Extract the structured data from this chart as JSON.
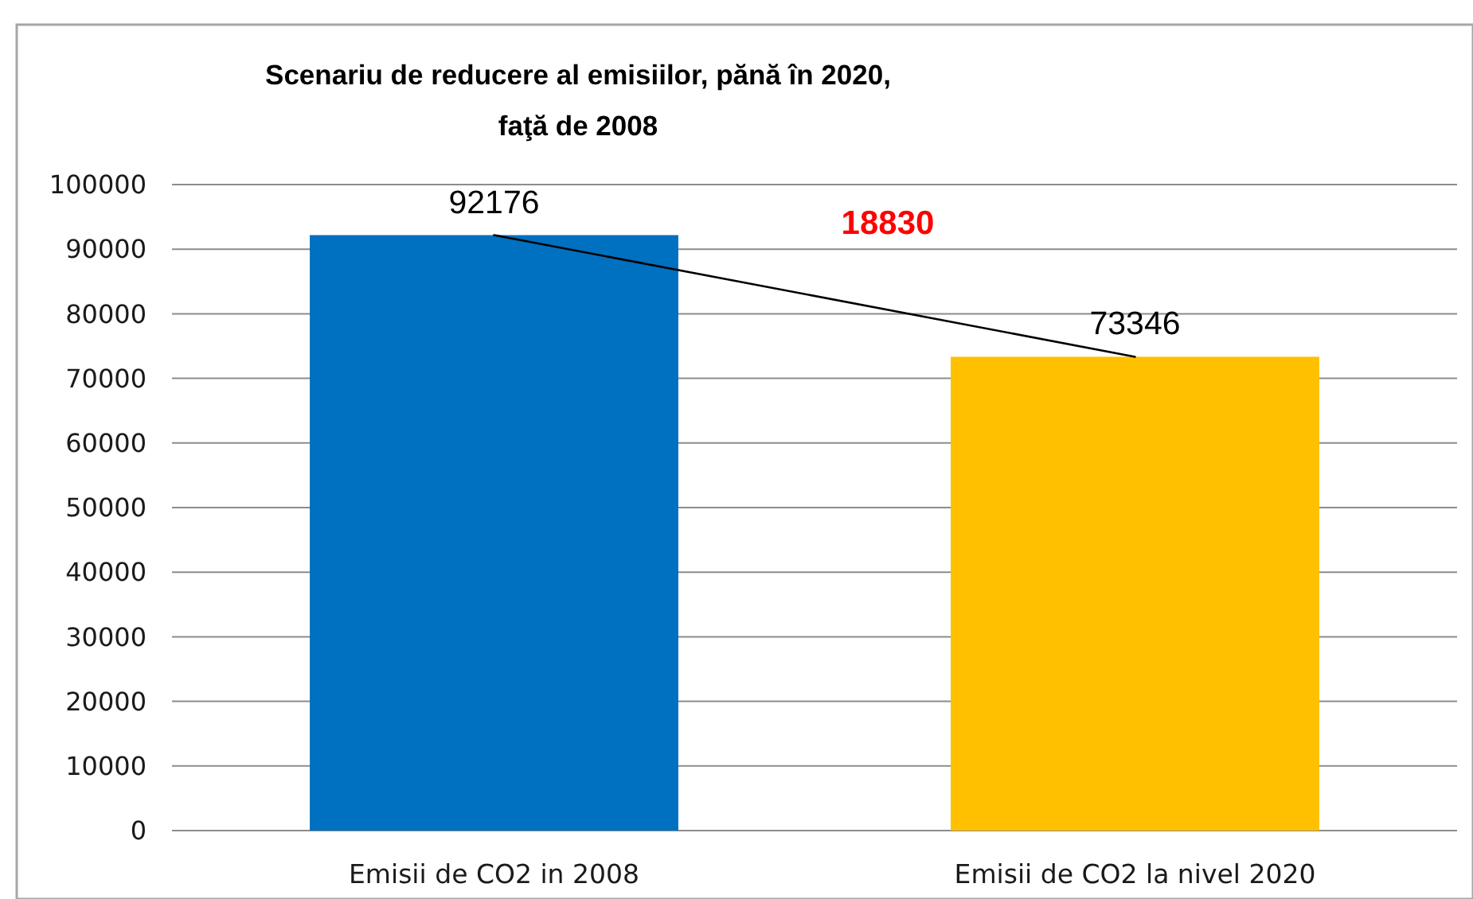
{
  "chart_data": {
    "type": "bar",
    "title": "Scenariu de reducere al emisiilor, pănă în 2020,\nfaţă de 2008",
    "categories": [
      "Emisii de CO2 in 2008",
      "Emisii de CO2 la nivel 2020"
    ],
    "series": [
      {
        "colors": [
          "#0070c0",
          "#ffc000"
        ],
        "values": [
          92176,
          73346
        ],
        "value_labels": [
          "92176",
          "73346"
        ]
      },
      {
        "type": "line",
        "color": "#000000",
        "values": [
          92176,
          73346
        ]
      }
    ],
    "ylim": [
      0,
      100000
    ],
    "yticks": [
      0,
      10000,
      20000,
      30000,
      40000,
      50000,
      60000,
      70000,
      80000,
      90000,
      100000
    ],
    "grid": "y",
    "annotations": [
      "18830"
    ]
  }
}
